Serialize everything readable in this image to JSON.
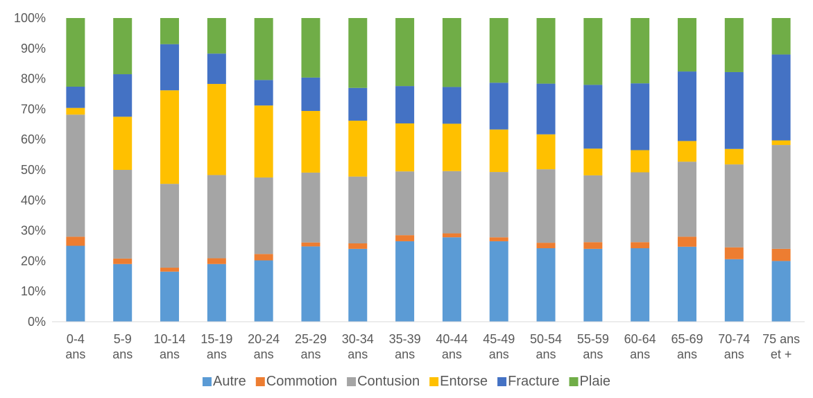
{
  "chart_data": {
    "type": "bar",
    "stacked": true,
    "percent": true,
    "title": "",
    "xlabel": "",
    "ylabel": "",
    "ylim": [
      0,
      100
    ],
    "y_ticks": [
      "0%",
      "10%",
      "20%",
      "30%",
      "40%",
      "50%",
      "60%",
      "70%",
      "80%",
      "90%",
      "100%"
    ],
    "grid": false,
    "legend_position": "bottom",
    "categories": [
      [
        "0-4",
        "ans"
      ],
      [
        "5-9",
        "ans"
      ],
      [
        "10-14",
        "ans"
      ],
      [
        "15-19",
        "ans"
      ],
      [
        "20-24",
        "ans"
      ],
      [
        "25-29",
        "ans"
      ],
      [
        "30-34",
        "ans"
      ],
      [
        "35-39",
        "ans"
      ],
      [
        "40-44",
        "ans"
      ],
      [
        "45-49",
        "ans"
      ],
      [
        "50-54",
        "ans"
      ],
      [
        "55-59",
        "ans"
      ],
      [
        "60-64",
        "ans"
      ],
      [
        "65-69",
        "ans"
      ],
      [
        "70-74",
        "ans"
      ],
      [
        "75 ans",
        "et +"
      ]
    ],
    "series": [
      {
        "name": "Autre",
        "color": "#5B9BD5",
        "values": [
          25,
          19,
          16.5,
          19,
          20.2,
          24.8,
          24,
          26.5,
          27.8,
          26.5,
          24.2,
          24,
          24.2,
          24.7,
          20.6,
          20
        ]
      },
      {
        "name": "Commotion",
        "color": "#ED7D31",
        "values": [
          3,
          1.8,
          1.3,
          1.9,
          2.1,
          1.3,
          1.8,
          2,
          1.3,
          1.3,
          1.8,
          2.2,
          2,
          3.3,
          3.9,
          4
        ]
      },
      {
        "name": "Contusion",
        "color": "#A5A5A5",
        "values": [
          40.2,
          29.2,
          27.6,
          27.4,
          25.2,
          23,
          22,
          21,
          20.5,
          21.5,
          24.2,
          22,
          23,
          24.7,
          27.3,
          34.2
        ]
      },
      {
        "name": "Entorse",
        "color": "#FFC000",
        "values": [
          2.2,
          17.5,
          30.8,
          30,
          23.7,
          20.3,
          18.4,
          15.8,
          15.6,
          14,
          11.5,
          8.8,
          7.3,
          6.8,
          5.1,
          1.5
        ]
      },
      {
        "name": "Fracture",
        "color": "#4472C4",
        "values": [
          7,
          14,
          15.2,
          10,
          8.4,
          11,
          10.8,
          12.3,
          12.1,
          15.4,
          16.7,
          21,
          22,
          22.9,
          25.3,
          28.3
        ]
      },
      {
        "name": "Plaie",
        "color": "#70AD47",
        "values": [
          22.6,
          18.5,
          8.6,
          11.7,
          20.4,
          19.6,
          23,
          22.4,
          22.7,
          21.3,
          21.6,
          22,
          21.5,
          17.6,
          17.8,
          12
        ]
      }
    ]
  }
}
